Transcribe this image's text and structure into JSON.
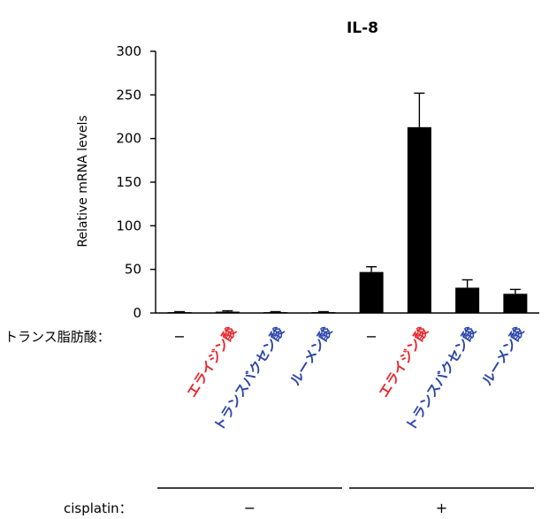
{
  "chart_data": {
    "type": "bar",
    "title": "IL-8",
    "ylabel": "Relative mRNA levels",
    "ylim": [
      0,
      300
    ],
    "yticks": [
      "0",
      "50",
      "100",
      "150",
      "200",
      "250",
      "300"
    ],
    "row_label": "トランス脂肪酸：",
    "categories": [
      "–",
      "エライジン酸",
      "トランスバクセン酸",
      "ルーメン酸",
      "–",
      "エライジン酸",
      "トランスバクセン酸",
      "ルーメン酸"
    ],
    "category_colors": [
      "#000000",
      "#e8262b",
      "#2b44a8",
      "#2b44a8",
      "#000000",
      "#e8262b",
      "#2b44a8",
      "#2b44a8"
    ],
    "values": [
      1,
      1.5,
      1,
      1,
      47,
      213,
      29,
      22
    ],
    "errors": [
      0.5,
      1,
      0.5,
      0.5,
      6,
      39,
      9,
      5
    ],
    "group_label": "cisplatin：",
    "groups": [
      {
        "label": "–",
        "span": [
          0,
          3
        ]
      },
      {
        "label": "+",
        "span": [
          4,
          7
        ]
      }
    ],
    "grid": false,
    "legend": "none"
  }
}
